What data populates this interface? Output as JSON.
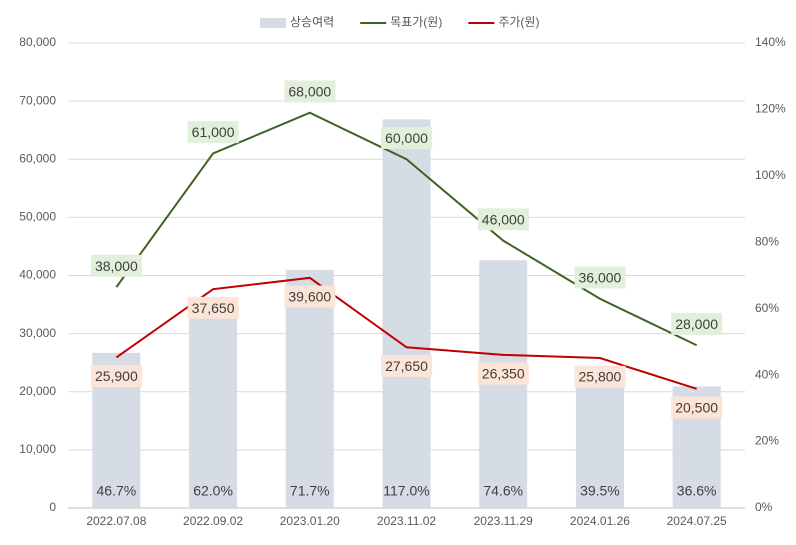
{
  "chart_data": {
    "type": "combo",
    "categories": [
      "2022.07.08",
      "2022.09.02",
      "2023.01.20",
      "2023.11.02",
      "2023.11.29",
      "2024.01.26",
      "2024.07.25"
    ],
    "series": [
      {
        "name": "상승여력",
        "type": "bar",
        "axis": "y2",
        "color": "#d6dce5",
        "values": [
          46.7,
          62.0,
          71.7,
          117.0,
          74.6,
          39.5,
          36.6
        ],
        "value_labels": [
          "46.7%",
          "62.0%",
          "71.7%",
          "117.0%",
          "74.6%",
          "39.5%",
          "36.6%"
        ]
      },
      {
        "name": "목표가(원)",
        "type": "line",
        "color": "#3f6322",
        "label_color": "#e2efda",
        "values": [
          38000,
          61000,
          68000,
          60000,
          46000,
          36000,
          28000
        ],
        "value_labels": [
          "38,000",
          "61,000",
          "68,000",
          "60,000",
          "46,000",
          "36,000",
          "28,000"
        ]
      },
      {
        "name": "주가(원)",
        "type": "line",
        "color": "#c00000",
        "label_color": "#fce4d6",
        "values": [
          25900,
          37650,
          39600,
          27650,
          26350,
          25800,
          20500
        ],
        "value_labels": [
          "25,900",
          "37,650",
          "39,600",
          "27,650",
          "26,350",
          "25,800",
          "20,500"
        ]
      }
    ],
    "ylim": [
      0,
      80000
    ],
    "yticks": [
      0,
      {
        "value": 10000,
        "label": "10,000"
      },
      {
        "value": 20000,
        "label": "20,000"
      },
      {
        "value": 30000,
        "label": "30,000"
      },
      {
        "value": 40000,
        "label": "40,000"
      },
      {
        "value": 50000,
        "label": "50,000"
      },
      {
        "value": 60000,
        "label": "60,000"
      },
      {
        "value": 70000,
        "label": "70,000"
      },
      {
        "value": 80000,
        "label": "80,000"
      }
    ],
    "y2lim": [
      0,
      140
    ],
    "y2ticks": [
      {
        "value": 0,
        "label": "0%"
      },
      {
        "value": 20,
        "label": "20%"
      },
      {
        "value": 40,
        "label": "40%"
      },
      {
        "value": 60,
        "label": "60%"
      },
      {
        "value": 80,
        "label": "80%"
      },
      {
        "value": 100,
        "label": "100%"
      },
      {
        "value": 120,
        "label": "120%"
      },
      {
        "value": 140,
        "label": "140%"
      }
    ],
    "grid": true,
    "legend": "top"
  }
}
